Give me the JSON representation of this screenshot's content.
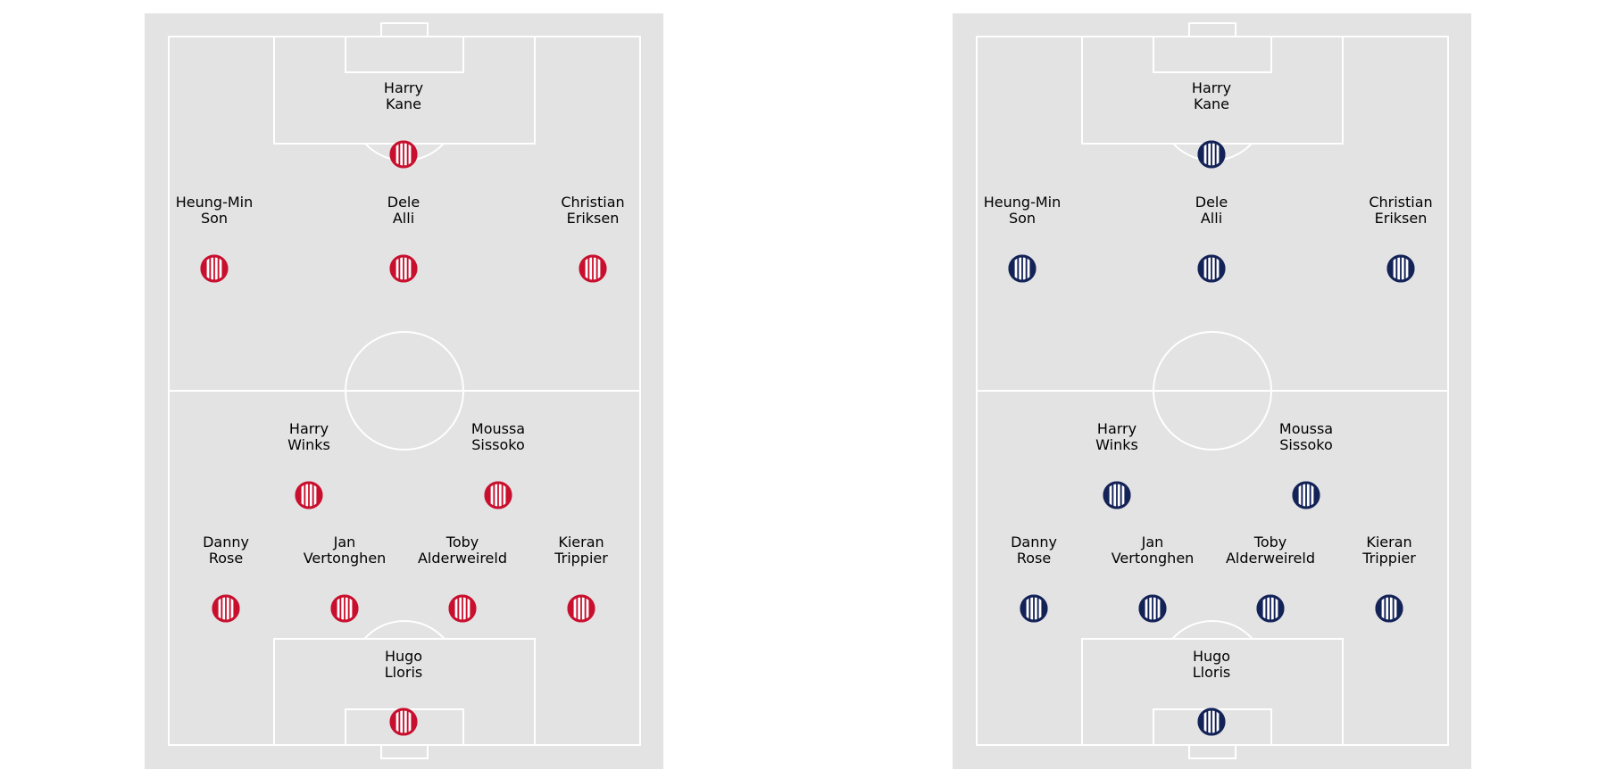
{
  "colors": {
    "pitch_background": "#e3e3e4",
    "pitch_lines": "#ffffff",
    "page_background": "#ffffff",
    "label_text": "#000000"
  },
  "formation": {
    "players": [
      {
        "name_line1": "Harry",
        "name_line2": "Kane"
      },
      {
        "name_line1": "Heung-Min",
        "name_line2": "Son"
      },
      {
        "name_line1": "Dele",
        "name_line2": "Alli"
      },
      {
        "name_line1": "Christian",
        "name_line2": "Eriksen"
      },
      {
        "name_line1": "Harry",
        "name_line2": "Winks"
      },
      {
        "name_line1": "Moussa",
        "name_line2": "Sissoko"
      },
      {
        "name_line1": "Danny",
        "name_line2": "Rose"
      },
      {
        "name_line1": "Jan",
        "name_line2": "Vertonghen"
      },
      {
        "name_line1": "Toby",
        "name_line2": "Alderweireld"
      },
      {
        "name_line1": "Kieran",
        "name_line2": "Trippier"
      },
      {
        "name_line1": "Hugo",
        "name_line2": "Lloris"
      }
    ]
  },
  "pitches": [
    {
      "id": "left",
      "kit_color": "#c8102e",
      "kit_stripe_color": "#ffffff",
      "kit_pattern": "vertical-stripes"
    },
    {
      "id": "right",
      "kit_color": "#132257",
      "kit_stripe_color": "#ffffff",
      "kit_pattern": "vertical-stripes"
    }
  ]
}
